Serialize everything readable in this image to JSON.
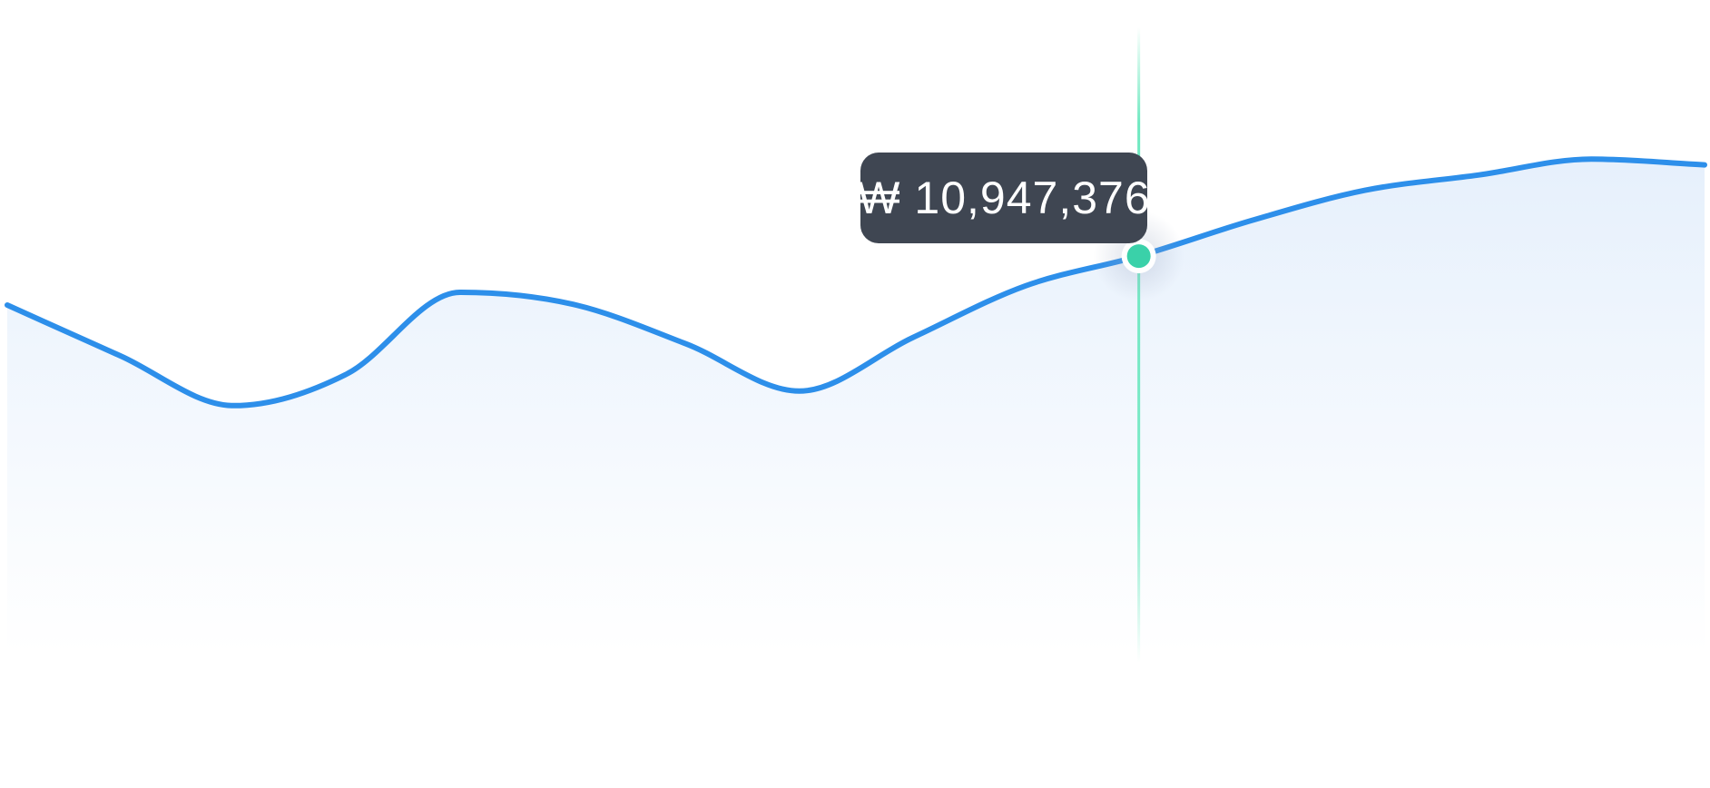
{
  "chart_data": {
    "type": "area",
    "title": "",
    "xlabel": "",
    "ylabel": "",
    "grid": false,
    "legend": "none",
    "colors": {
      "line": "#2d8fea",
      "fill_top": "#e6f0fc",
      "fill_bottom": "#ffffff",
      "crosshair": "#5ee6b9",
      "marker": "#3ad1a9",
      "tooltip_bg": "#3f4652",
      "tooltip_text": "#ffffff"
    },
    "x": [
      0,
      1,
      2,
      3,
      4,
      5,
      6,
      7,
      8,
      9,
      10,
      11,
      12,
      13,
      14,
      15
    ],
    "ylim": [
      0,
      18000000
    ],
    "series": [
      {
        "values": [
          9600000,
          8200000,
          6830000,
          7700000,
          9950000,
          9620000,
          8530000,
          7230000,
          8700000,
          10130000,
          10947376,
          11930000,
          12760000,
          13180000,
          13620000,
          13460000
        ]
      }
    ],
    "highlight": {
      "index": 10,
      "label": "₩ 10,947,376"
    }
  }
}
